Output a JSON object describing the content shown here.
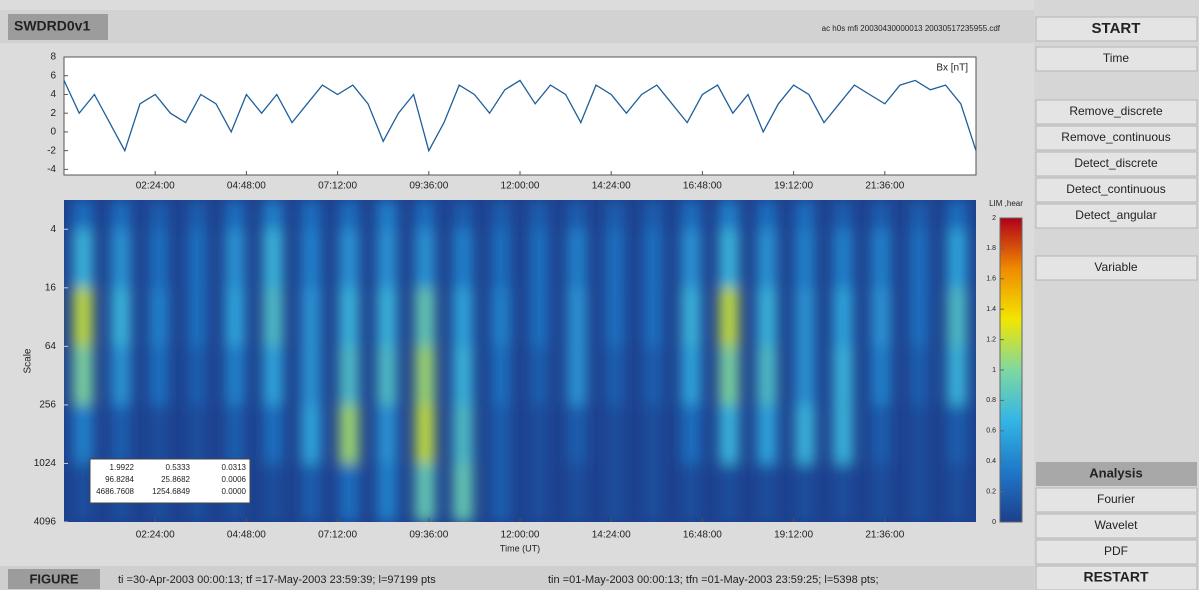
{
  "header": {
    "title": "SWDRD0v1",
    "file": "ac h0s mfi 20030430000013 20030517235955.cdf"
  },
  "menu": {
    "buttons": [
      "START",
      "Time",
      "Remove_discrete",
      "Remove_continuous",
      "Detect_discrete",
      "Detect_continuous",
      "Detect_angular",
      "Variable"
    ],
    "analysis_title": "Analysis",
    "analysis_buttons": [
      "Fourier",
      "Wavelet",
      "PDF"
    ],
    "restart": "RESTART"
  },
  "status": {
    "label": "FIGURE",
    "range": "ti =30-Apr-2003 00:00:13; tf =17-May-2003 23:59:39; l=97199 pts",
    "window": "tin =01-May-2003 00:00:13; tfn =01-May-2003 23:59:25; l=5398 pts;"
  },
  "inset_table": {
    "rows": [
      [
        "1.9922",
        "0.5333",
        "0.0313"
      ],
      [
        "96.8284",
        "25.8682",
        "0.0006"
      ],
      [
        "4686.7608",
        "1254.6849",
        "0.0000"
      ]
    ]
  },
  "chart_data": [
    {
      "type": "line",
      "legend": "Bx [nT]",
      "color": "#1f5f99",
      "x": [
        0,
        0.4,
        0.8,
        1.2,
        1.6,
        2,
        2.4,
        2.8,
        3.2,
        3.6,
        4,
        4.4,
        4.8,
        5.2,
        5.6,
        6,
        6.4,
        6.8,
        7.2,
        7.6,
        8,
        8.4,
        8.8,
        9.2,
        9.6,
        10,
        10.4,
        10.8,
        11.2,
        11.6,
        12,
        12.4,
        12.8,
        13.2,
        13.6,
        14,
        14.4,
        14.8,
        15.2,
        15.6,
        16,
        16.4,
        16.8,
        17.2,
        17.6,
        18,
        18.4,
        18.8,
        19.2,
        19.6,
        20,
        20.4,
        20.8,
        21.2,
        21.6,
        22,
        22.4,
        22.8,
        23.2,
        23.6,
        24
      ],
      "values": [
        5.5,
        2,
        4,
        1,
        -2,
        3,
        4,
        2,
        1,
        4,
        3,
        0,
        4,
        2,
        4,
        1,
        3,
        5,
        4,
        5,
        3,
        -1,
        2,
        4,
        -2,
        1,
        5,
        4,
        2,
        4.5,
        5.5,
        3,
        5,
        4,
        1,
        5,
        4,
        2,
        4,
        5,
        3,
        1,
        4,
        5,
        2,
        4,
        0,
        3,
        5,
        4,
        1,
        3,
        5,
        4,
        3,
        5,
        5.5,
        4.5,
        5,
        3,
        -2
      ],
      "xlim": [
        0,
        24
      ],
      "xticks": [
        {
          "value": 2.4,
          "label": "02:24:00"
        },
        {
          "value": 4.8,
          "label": "04:48:00"
        },
        {
          "value": 7.2,
          "label": "07:12:00"
        },
        {
          "value": 9.6,
          "label": "09:36:00"
        },
        {
          "value": 12,
          "label": "12:00:00"
        },
        {
          "value": 14.4,
          "label": "14:24:00"
        },
        {
          "value": 16.8,
          "label": "16:48:00"
        },
        {
          "value": 19.2,
          "label": "19:12:00"
        },
        {
          "value": 21.6,
          "label": "21:36:00"
        }
      ],
      "ylim": [
        -4.6,
        8
      ],
      "yticks": [
        -4,
        -2,
        0,
        2,
        4,
        6,
        8
      ]
    },
    {
      "type": "heatmap",
      "xlabel": "Time (UT)",
      "ylabel": "Scale",
      "log_y": true,
      "y_inverted": true,
      "x_bins": [
        0,
        1,
        2,
        3,
        4,
        5,
        6,
        7,
        8,
        9,
        10,
        11,
        12,
        13,
        14,
        15,
        16,
        17,
        18,
        19,
        20,
        21,
        22,
        23,
        24
      ],
      "y_bins": [
        2,
        4,
        16,
        64,
        256,
        1024,
        4096
      ],
      "values": [
        [
          0.3,
          0.3,
          0.2,
          0.2,
          0.3,
          0.4,
          0.3,
          0.3,
          0.4,
          0.3,
          0.2,
          0.2,
          0.2,
          0.2,
          0.2,
          0.2,
          0.3,
          0.4,
          0.3,
          0.3,
          0.2,
          0.2,
          0.2,
          0.3
        ],
        [
          0.7,
          0.5,
          0.3,
          0.3,
          0.5,
          0.7,
          0.4,
          0.5,
          0.5,
          0.5,
          0.4,
          0.3,
          0.3,
          0.4,
          0.3,
          0.3,
          0.5,
          0.7,
          0.5,
          0.4,
          0.4,
          0.4,
          0.3,
          0.6
        ],
        [
          1.2,
          0.7,
          0.4,
          0.3,
          0.6,
          0.8,
          0.5,
          0.7,
          0.7,
          0.9,
          0.6,
          0.4,
          0.3,
          0.5,
          0.3,
          0.3,
          0.7,
          1.2,
          0.7,
          0.5,
          0.6,
          0.5,
          0.3,
          0.8
        ],
        [
          1.0,
          0.5,
          0.3,
          0.2,
          0.4,
          0.6,
          0.5,
          0.8,
          0.8,
          1.1,
          0.7,
          0.3,
          0.2,
          0.5,
          0.2,
          0.2,
          0.6,
          1.0,
          0.8,
          0.5,
          0.7,
          0.4,
          0.2,
          0.7
        ],
        [
          0.4,
          0.2,
          0.1,
          0.1,
          0.2,
          0.3,
          0.6,
          1.1,
          0.5,
          1.2,
          0.8,
          0.2,
          0.1,
          0.2,
          0.1,
          0.1,
          0.3,
          0.7,
          0.6,
          0.7,
          0.7,
          0.2,
          0.1,
          0.2
        ],
        [
          0.1,
          0.1,
          0.1,
          0.1,
          0.1,
          0.1,
          0.2,
          0.3,
          0.4,
          0.9,
          0.9,
          0.2,
          0.1,
          0.1,
          0.1,
          0.1,
          0.1,
          0.1,
          0.1,
          0.1,
          0.1,
          0.1,
          0.1,
          0.1
        ]
      ],
      "xlim": [
        0,
        24
      ],
      "xticks": [
        {
          "value": 2.4,
          "label": "02:24:00"
        },
        {
          "value": 4.8,
          "label": "04:48:00"
        },
        {
          "value": 7.2,
          "label": "07:12:00"
        },
        {
          "value": 9.6,
          "label": "09:36:00"
        },
        {
          "value": 12,
          "label": "12:00:00"
        },
        {
          "value": 14.4,
          "label": "14:24:00"
        },
        {
          "value": 16.8,
          "label": "16:48:00"
        },
        {
          "value": 19.2,
          "label": "19:12:00"
        },
        {
          "value": 21.6,
          "label": "21:36:00"
        }
      ],
      "ylim": [
        2,
        4096
      ],
      "yticks": [
        4,
        16,
        64,
        256,
        1024,
        4096
      ],
      "colormap": [
        "#1d3f8c",
        "#1f78c8",
        "#33b5e5",
        "#7fd8a0",
        "#f2e600",
        "#f08a00",
        "#b0001a"
      ],
      "colorbar": {
        "label": "LIM ,hear",
        "lim": [
          0,
          2
        ],
        "ticks": [
          0,
          0.2,
          0.4,
          0.6,
          0.8,
          1,
          1.2,
          1.4,
          1.6,
          1.8,
          2
        ]
      }
    }
  ]
}
